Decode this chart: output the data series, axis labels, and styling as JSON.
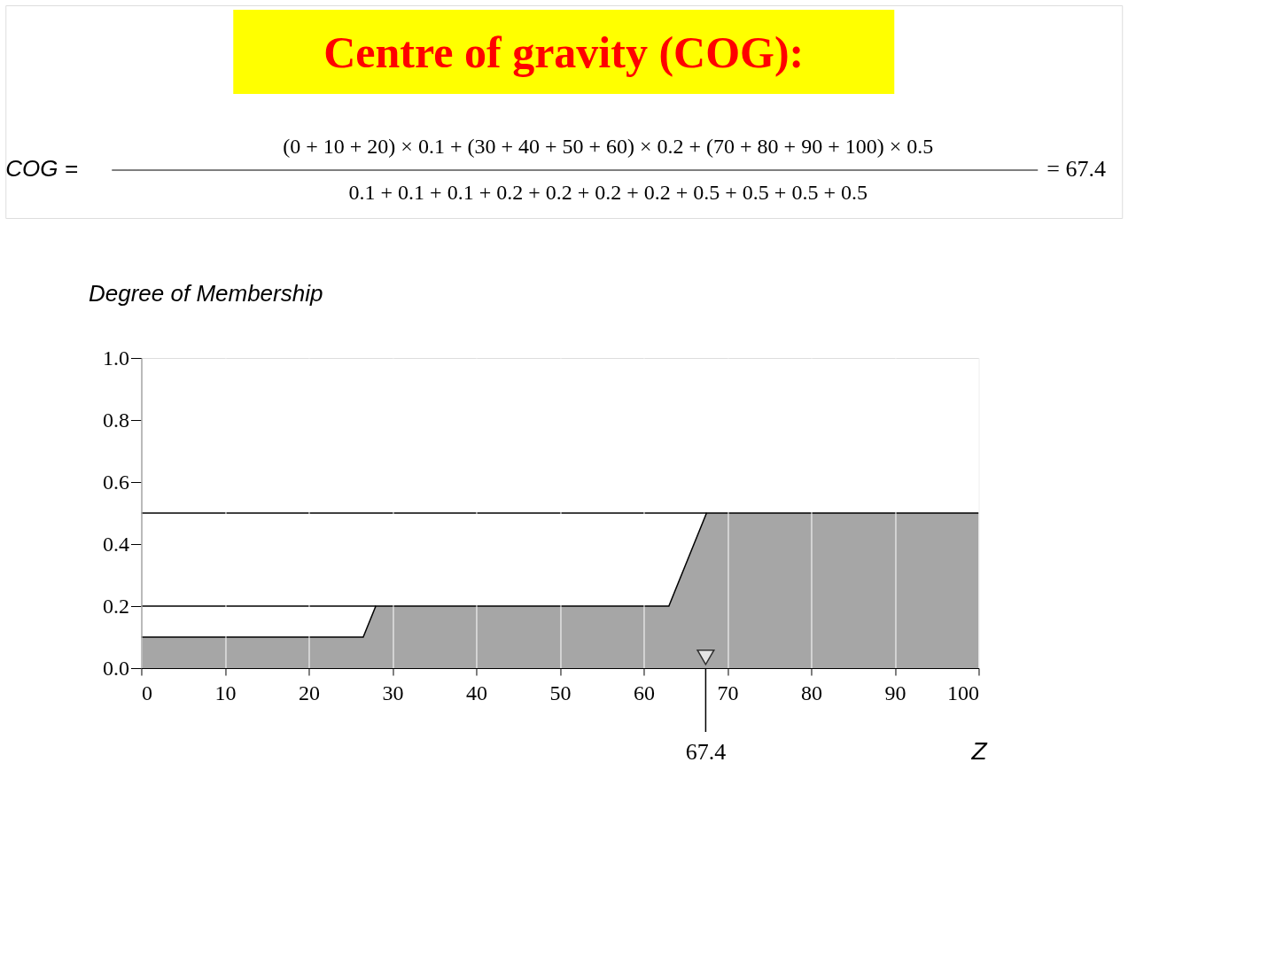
{
  "chart_data": {
    "type": "area",
    "title": "Centre of gravity (COG):",
    "xlabel": "Z",
    "ylabel": "Degree of Membership",
    "annotations": [
      "COG =",
      "(0 + 10 + 20) × 0.1 + (30 + 40 + 50 + 60) × 0.2 + (70 + 80 + 90 + 100) × 0.5",
      "0.1 + 0.1 + 0.1 + 0.2 + 0.2 + 0.2 + 0.2 + 0.5 + 0.5 + 0.5 + 0.5",
      "= 67.4"
    ],
    "ref_lines": [
      {
        "axis": "x",
        "value": 67.4,
        "label": "67.4"
      }
    ],
    "xlim": [
      0,
      100
    ],
    "xticks": [
      0,
      10,
      20,
      30,
      40,
      50,
      60,
      70,
      80,
      90,
      100
    ],
    "ylim": [
      0,
      1
    ],
    "yticks": [
      {
        "value": 0,
        "label": "0.0"
      },
      {
        "value": 0.2,
        "label": "0.2"
      },
      {
        "value": 0.4,
        "label": "0.4"
      },
      {
        "value": 0.6,
        "label": "0.6"
      },
      {
        "value": 0.8,
        "label": "0.8"
      },
      {
        "value": 1,
        "label": "1.0"
      }
    ],
    "grid": "x",
    "series": [
      {
        "color": "#808080",
        "x": [
          0,
          26.5,
          28,
          63,
          67.5,
          100
        ],
        "values": [
          0.1,
          0.1,
          0.2,
          0.2,
          0.5,
          0.5
        ]
      },
      {
        "type": "line",
        "color": "#000000",
        "x": [
          0,
          67.5
        ],
        "values": [
          0.5,
          0.5
        ]
      },
      {
        "type": "line",
        "color": "#000000",
        "x": [
          0,
          28
        ],
        "values": [
          0.2,
          0.2
        ]
      },
      {
        "type": "scatter",
        "color": "#ffffff",
        "marker": "triangle",
        "x": [
          67.4
        ],
        "values": [
          0.035
        ]
      }
    ]
  }
}
